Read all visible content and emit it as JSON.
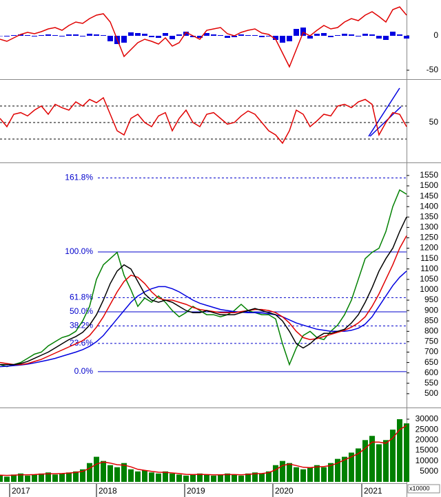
{
  "chart_data": [
    {
      "type": "combo",
      "xlim": [
        0,
        59
      ],
      "ylim": [
        -61,
        52
      ],
      "yticks": [
        0,
        -50
      ],
      "series": [
        {
          "type": "bar",
          "color": "#0000e0",
          "values": [
            0,
            -1,
            1,
            2,
            1,
            -1,
            1,
            2,
            1,
            -1,
            2,
            2,
            -1,
            3,
            2,
            1,
            -8,
            -12,
            -10,
            5,
            4,
            3,
            -2,
            -3,
            4,
            -5,
            2,
            6,
            -2,
            -3,
            4,
            2,
            1,
            -3,
            -2,
            2,
            1,
            1,
            -2,
            -1,
            -6,
            -10,
            -8,
            10,
            12,
            -4,
            3,
            4,
            -2,
            1,
            3,
            2,
            -1,
            3,
            2,
            -4,
            -6,
            6,
            2,
            -4
          ]
        },
        {
          "type": "line",
          "color": "#e00000",
          "values": [
            -5,
            -8,
            -3,
            2,
            5,
            3,
            6,
            10,
            12,
            8,
            15,
            20,
            18,
            25,
            30,
            32,
            20,
            -5,
            -30,
            -20,
            -10,
            -5,
            -8,
            -12,
            -3,
            -15,
            -10,
            5,
            0,
            -5,
            8,
            10,
            12,
            3,
            0,
            5,
            8,
            10,
            4,
            2,
            -5,
            -25,
            -45,
            -20,
            5,
            0,
            8,
            15,
            10,
            12,
            20,
            25,
            22,
            30,
            35,
            28,
            20,
            38,
            42,
            30
          ]
        }
      ]
    },
    {
      "type": "combo",
      "xlim": [
        0,
        59
      ],
      "ylim": [
        2.5,
        100
      ],
      "yticks": [
        50
      ],
      "levels": [
        70,
        50,
        30
      ],
      "series": [
        {
          "type": "line",
          "color": "#e00000",
          "values": [
            55,
            45,
            60,
            62,
            58,
            65,
            70,
            60,
            72,
            68,
            65,
            75,
            70,
            78,
            74,
            80,
            60,
            40,
            35,
            55,
            60,
            50,
            45,
            58,
            62,
            40,
            55,
            65,
            50,
            45,
            60,
            62,
            55,
            48,
            50,
            58,
            64,
            60,
            50,
            40,
            35,
            25,
            40,
            65,
            60,
            45,
            52,
            60,
            58,
            70,
            72,
            68,
            75,
            78,
            72,
            35,
            50,
            62,
            60,
            45
          ]
        }
      ]
    },
    {
      "type": "combo",
      "xlim": [
        0,
        59
      ],
      "ylim": [
        440,
        1606
      ],
      "yticks": [
        500,
        550,
        600,
        650,
        700,
        750,
        800,
        850,
        900,
        950,
        1000,
        1050,
        1100,
        1150,
        1200,
        1250,
        1300,
        1350,
        1400,
        1450,
        1500,
        1550
      ],
      "fib_levels": [
        {
          "label": "161.8%",
          "value": 1538,
          "dashed": true
        },
        {
          "label": "100.0%",
          "value": 1182,
          "dashed": false
        },
        {
          "label": "61.8%",
          "value": 962,
          "dashed": true
        },
        {
          "label": "50.0%",
          "value": 894,
          "dashed": false
        },
        {
          "label": "38.2%",
          "value": 826,
          "dashed": true
        },
        {
          "label": "23.6%",
          "value": 742,
          "dashed": true
        },
        {
          "label": "0.0%",
          "value": 606,
          "dashed": false
        }
      ],
      "series": [
        {
          "type": "line",
          "color": "#008000",
          "values": [
            640,
            630,
            640,
            650,
            670,
            690,
            700,
            730,
            750,
            770,
            780,
            800,
            850,
            920,
            1050,
            1120,
            1150,
            1180,
            1070,
            1000,
            920,
            960,
            940,
            970,
            940,
            900,
            870,
            890,
            920,
            900,
            880,
            880,
            870,
            880,
            900,
            930,
            900,
            890,
            880,
            880,
            860,
            740,
            640,
            720,
            780,
            800,
            770,
            760,
            800,
            830,
            880,
            950,
            1050,
            1150,
            1180,
            1200,
            1280,
            1400,
            1480,
            1460
          ]
        },
        {
          "type": "line",
          "color": "#0000e0",
          "values": [
            630,
            632,
            635,
            638,
            642,
            648,
            655,
            662,
            670,
            680,
            690,
            700,
            712,
            728,
            750,
            780,
            820,
            860,
            900,
            940,
            970,
            990,
            1005,
            1015,
            1015,
            1005,
            990,
            970,
            950,
            935,
            925,
            915,
            905,
            900,
            895,
            892,
            890,
            890,
            888,
            885,
            880,
            870,
            855,
            840,
            830,
            820,
            810,
            805,
            800,
            800,
            800,
            805,
            815,
            835,
            870,
            920,
            970,
            1020,
            1060,
            1090
          ]
        },
        {
          "type": "line",
          "color": "#e00000",
          "values": [
            650,
            645,
            640,
            640,
            645,
            655,
            665,
            680,
            695,
            710,
            725,
            740,
            755,
            780,
            820,
            870,
            930,
            990,
            1040,
            1070,
            1060,
            1030,
            990,
            960,
            950,
            950,
            940,
            930,
            915,
            905,
            900,
            895,
            890,
            890,
            890,
            895,
            900,
            905,
            905,
            900,
            890,
            870,
            840,
            800,
            770,
            760,
            765,
            775,
            785,
            795,
            805,
            820,
            840,
            870,
            920,
            980,
            1050,
            1120,
            1200,
            1260
          ]
        },
        {
          "type": "line",
          "color": "#000000",
          "values": [
            640,
            640,
            640,
            645,
            655,
            670,
            685,
            700,
            720,
            740,
            760,
            775,
            795,
            830,
            880,
            950,
            1030,
            1090,
            1120,
            1100,
            1040,
            980,
            950,
            940,
            950,
            940,
            920,
            900,
            890,
            890,
            900,
            890,
            880,
            880,
            880,
            890,
            900,
            910,
            900,
            890,
            880,
            850,
            800,
            740,
            720,
            740,
            770,
            790,
            790,
            800,
            810,
            840,
            880,
            940,
            1010,
            1090,
            1150,
            1200,
            1280,
            1350
          ]
        }
      ]
    },
    {
      "type": "combo",
      "xlim": [
        0,
        59
      ],
      "ylim": [
        0,
        34600
      ],
      "yticks": [
        5000,
        10000,
        15000,
        20000,
        25000,
        30000
      ],
      "unit_label": "x10000",
      "xticks": [
        {
          "value": 1.4,
          "label": "2017"
        },
        {
          "value": 14,
          "label": "2018"
        },
        {
          "value": 26.8,
          "label": "2019"
        },
        {
          "value": 39.6,
          "label": "2020"
        },
        {
          "value": 52.5,
          "label": "2021"
        }
      ],
      "series": [
        {
          "type": "bar",
          "color": "#008000",
          "values": [
            3000,
            2500,
            3500,
            4000,
            3000,
            3500,
            4000,
            4500,
            3500,
            4000,
            4500,
            5000,
            6000,
            9000,
            12000,
            10000,
            8000,
            7000,
            9000,
            6000,
            5000,
            5500,
            4500,
            4000,
            5000,
            4000,
            3500,
            3000,
            3500,
            4000,
            3500,
            3000,
            3500,
            4000,
            3500,
            3000,
            4000,
            4500,
            4000,
            5000,
            8000,
            10000,
            9000,
            7000,
            6000,
            7000,
            8000,
            7000,
            9000,
            11000,
            12000,
            14000,
            16000,
            20000,
            22000,
            18000,
            20000,
            25000,
            30000,
            28000
          ]
        },
        {
          "type": "line",
          "color": "#e00000",
          "values": [
            3200,
            3100,
            3200,
            3400,
            3400,
            3500,
            3700,
            3900,
            3900,
            4000,
            4200,
            4500,
            5000,
            6500,
            8500,
            9500,
            9000,
            8200,
            8000,
            7200,
            6000,
            5500,
            5000,
            4600,
            4500,
            4300,
            4000,
            3600,
            3500,
            3600,
            3500,
            3400,
            3400,
            3500,
            3500,
            3400,
            3600,
            3900,
            4000,
            4400,
            5800,
            7800,
            8500,
            7800,
            7000,
            6800,
            7200,
            7300,
            7800,
            9000,
            10500,
            12000,
            13500,
            16000,
            19000,
            19000,
            18500,
            21000,
            25000,
            27000
          ]
        }
      ]
    }
  ]
}
